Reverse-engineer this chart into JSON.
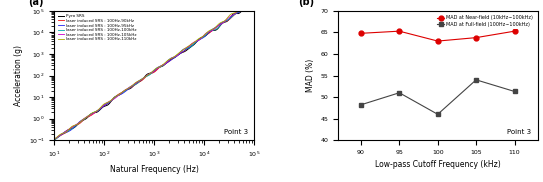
{
  "panel_a": {
    "label": "(a)",
    "xlabel": "Natural Frequency (Hz)",
    "ylabel": "Acceleration (g)",
    "xlim_log": [
      1,
      5
    ],
    "ylim_log": [
      -1,
      5
    ],
    "annotation": "Point 3",
    "legend_entries": [
      {
        "label": "Pyro SRS",
        "color": "#000000",
        "lw": 0.7
      },
      {
        "label": "laser induced SRS : 100Hz-90kHz",
        "color": "#ee1111",
        "lw": 0.6
      },
      {
        "label": "laser induced SRS : 100Hz-95kHz",
        "color": "#2222ee",
        "lw": 0.6
      },
      {
        "label": "laser induced SRS : 100Hz-100kHz",
        "color": "#00aaaa",
        "lw": 0.6
      },
      {
        "label": "laser induced SRS : 100Hz-105kHz",
        "color": "#cc00cc",
        "lw": 0.6
      },
      {
        "label": "laser induced SRS : 100Hz-110kHz",
        "color": "#aaaa00",
        "lw": 0.6
      }
    ],
    "curve_seeds": [
      42,
      7,
      13,
      21,
      33,
      55
    ],
    "curve_offsets": [
      0.0,
      0.0,
      0.02,
      0.04,
      0.06,
      0.1
    ],
    "noise_scales": [
      0.22,
      0.14,
      0.14,
      0.14,
      0.14,
      0.14
    ],
    "high_freq_boost": [
      1.0,
      1.15,
      1.1,
      1.05,
      1.2,
      1.35
    ]
  },
  "panel_b": {
    "label": "(b)",
    "xlabel": "Low-pass Cutoff Frequency (kHz)",
    "ylabel": "MAD (%)",
    "xlim": [
      87,
      113
    ],
    "ylim": [
      40,
      70
    ],
    "yticks": [
      40,
      45,
      50,
      55,
      60,
      65,
      70
    ],
    "xticks": [
      90,
      95,
      100,
      105,
      110
    ],
    "annotation": "Point 3",
    "series": [
      {
        "label": "MAD at Near-field (10kHz∼100kHz)",
        "color": "#dd0000",
        "marker": "o",
        "markersize": 3.5,
        "x": [
          90,
          95,
          100,
          105,
          110
        ],
        "y": [
          64.8,
          65.3,
          63.0,
          63.8,
          65.3
        ]
      },
      {
        "label": "MAD at Full-field (100Hz∼100kHz)",
        "color": "#444444",
        "marker": "s",
        "markersize": 3.5,
        "x": [
          90,
          95,
          100,
          105,
          110
        ],
        "y": [
          48.2,
          51.0,
          46.0,
          54.0,
          51.3
        ]
      }
    ]
  }
}
